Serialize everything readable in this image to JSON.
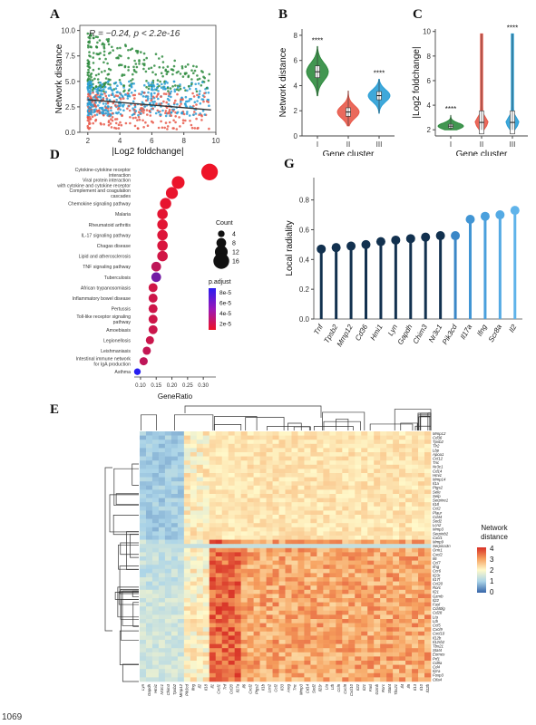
{
  "page": {
    "number": "1069"
  },
  "panels": {
    "A": "A",
    "B": "B",
    "C": "C",
    "D": "D",
    "E": "E",
    "G": "G"
  },
  "chart_data": [
    {
      "panel": "A",
      "type": "scatter",
      "annotation": "R = −0.24, p < 2.2e-16",
      "xlabel": "|Log2 foldchange|",
      "ylabel": "Network distance",
      "xticks": [
        "2",
        "4",
        "6",
        "8",
        "10"
      ],
      "yticks": [
        "0.0",
        "2.5",
        "5.0",
        "7.5",
        "10.0"
      ],
      "xlim": [
        1.5,
        10
      ],
      "ylim": [
        0,
        10.5
      ],
      "series_colors": [
        "#2e8b3e",
        "#e8594a",
        "#2a9fd6"
      ],
      "regression": {
        "x": [
          2,
          9.7
        ],
        "y": [
          3.2,
          2.2
        ]
      }
    },
    {
      "panel": "B",
      "type": "violin",
      "xlabel": "Gene cluster",
      "ylabel": "Network distance",
      "categories": [
        "I",
        "II",
        "III"
      ],
      "medians": [
        5.1,
        1.9,
        3.2
      ],
      "ranges": [
        [
          3.2,
          7.1
        ],
        [
          0.8,
          3.6
        ],
        [
          1.8,
          4.5
        ]
      ],
      "significance": [
        "****",
        "",
        "****"
      ],
      "colors": [
        "#2e8b3e",
        "#e8594a",
        "#2a9fd6"
      ],
      "yticks": [
        "0",
        "2",
        "4",
        "6",
        "8"
      ],
      "ylim": [
        0,
        8.5
      ]
    },
    {
      "panel": "C",
      "type": "violin",
      "xlabel": "Gene cluster",
      "ylabel": "|Log2 foldchange|",
      "categories": [
        "I",
        "II",
        "III"
      ],
      "medians": [
        2.3,
        2.6,
        2.6
      ],
      "ranges": [
        [
          2,
          3.2
        ],
        [
          2,
          9.8
        ],
        [
          2,
          9.8
        ]
      ],
      "significance": [
        "****",
        "",
        "****"
      ],
      "colors": [
        "#2e8b3e",
        "#e8594a",
        "#2a9fd6"
      ],
      "yticks": [
        "2",
        "4",
        "6",
        "8",
        "10"
      ],
      "ylim": [
        1.5,
        10.2
      ]
    },
    {
      "panel": "D",
      "type": "scatter",
      "xlabel": "GeneRatio",
      "xticks": [
        "0.10",
        "0.15",
        "0.20",
        "0.25",
        "0.30"
      ],
      "xlim": [
        0.08,
        0.34
      ],
      "categories": [
        "Cytokine-cytokine receptor interaction",
        "Viral protein interaction with cytokine and cytokine receptor",
        "Complement and coagulation cascades",
        "Chemokine signaling pathway",
        "Malaria",
        "Rheumatoid arthritis",
        "IL-17 signaling pathway",
        "Chagas disease",
        "Lipid and atherosclerosis",
        "TNF signaling pathway",
        "Tuberculosis",
        "African trypanosomiasis",
        "Inflammatory bowel disease",
        "Pertussis",
        "Toll-like receptor signaling pathway",
        "Amoebiasis",
        "Legionellosis",
        "Leishmaniasis",
        "Intestinal immune network for IgA production",
        "Asthma"
      ],
      "values": [
        0.32,
        0.22,
        0.2,
        0.18,
        0.17,
        0.17,
        0.17,
        0.17,
        0.17,
        0.15,
        0.15,
        0.14,
        0.14,
        0.14,
        0.14,
        0.14,
        0.13,
        0.12,
        0.11,
        0.09
      ],
      "counts": [
        17,
        12,
        11,
        10,
        9,
        9,
        9,
        9,
        9,
        8,
        8,
        7,
        7,
        7,
        7,
        7,
        6,
        6,
        6,
        4
      ],
      "p_adjust": [
        2e-06,
        3e-06,
        4e-06,
        5e-06,
        6e-06,
        7e-06,
        9e-06,
        1.1e-05,
        1.4e-05,
        2.2e-05,
        5.4e-05,
        1.5e-05,
        1.6e-05,
        1.6e-05,
        1.6e-05,
        1.7e-05,
        1.7e-05,
        2e-05,
        2.2e-05,
        8.6e-05
      ],
      "legend_count_title": "Count",
      "legend_counts": [
        "4",
        "8",
        "12",
        "16"
      ],
      "legend_p_title": "p.adjust",
      "legend_p": [
        "8e-5",
        "6e-5",
        "4e-5",
        "2e-5"
      ]
    },
    {
      "panel": "G",
      "type": "lollipop",
      "ylabel": "Local radiality",
      "yticks": [
        "0.0",
        "0.2",
        "0.4",
        "0.6",
        "0.8"
      ],
      "ylim": [
        0,
        0.95
      ],
      "categories": [
        "Tnf",
        "Tpsb2",
        "Mmp12",
        "Cd36",
        "Hmi1",
        "Lyn",
        "Gapdh",
        "Chim3",
        "Nr3c1",
        "Pik3cd",
        "Il17a",
        "Ifng",
        "Scr8a",
        "Il2"
      ],
      "values": [
        0.47,
        0.48,
        0.49,
        0.5,
        0.52,
        0.53,
        0.54,
        0.55,
        0.56,
        0.56,
        0.67,
        0.69,
        0.7,
        0.73
      ],
      "colors": [
        "#12314f",
        "#12314f",
        "#12314f",
        "#12314f",
        "#12314f",
        "#12314f",
        "#12314f",
        "#12314f",
        "#12314f",
        "#3b87c7",
        "#4195d4",
        "#4aa0dd",
        "#54aae4",
        "#5fb3ea"
      ]
    },
    {
      "panel": "E",
      "type": "heatmap",
      "legend_title": "Network distance",
      "legend_ticks": [
        "4",
        "3",
        "2",
        "1",
        "0"
      ],
      "row_labels": [
        "Mmp12",
        "Cd36",
        "Tpsb2",
        "Tlr2",
        "Lbp",
        "Apoa1",
        "Ccl12",
        "Tnc",
        "Nr3c1",
        "Cd14",
        "Hmi1",
        "Mmp14",
        "Il1a",
        "Ptgs2",
        "Sele",
        "Selp",
        "Serpine1",
        "Il18",
        "Ccl2",
        "Plaur",
        "Cd44",
        "Sod2",
        "Lcn2",
        "Mmp3",
        "Serpinb2",
        "Cxcl1",
        "Mmp9",
        "Serpina3n",
        "Orm1",
        "Cxcl2",
        "Il6",
        "Ccl7",
        "Ifng",
        "Ccr6",
        "Il23r",
        "Il17f",
        "Ccl20",
        "Rorc",
        "Il21",
        "Gzmb",
        "Il22",
        "Fasl",
        "Cd40lg",
        "Cd28",
        "Lta",
        "Ltb",
        "Ccl5",
        "Cxcl9",
        "Cxcl10",
        "Il12b",
        "Il12rb2",
        "Tbx21",
        "Stat4",
        "Eomes",
        "Prf1",
        "Cd8a",
        "Cd4",
        "Il2ra",
        "Foxp3",
        "Ctla4"
      ],
      "col_labels": [
        "Lyn",
        "Gapdh",
        "Hmi1",
        "Nr3c1",
        "Chim3",
        "Tpsb2",
        "Mmp12",
        "Pik3cd",
        "Ifng",
        "Il2",
        "Il18",
        "Il1",
        "Cxcl1",
        "Tnf",
        "Ccl20",
        "Il17a",
        "Il6",
        "Cxcl2",
        "Ptgs2",
        "Il1b",
        "Lcn2",
        "Ccl2",
        "Il33",
        "Areg",
        "Tnc",
        "Mmp3",
        "Cd14",
        "Sod2",
        "Il23r",
        "Lta",
        "Ltb",
        "Ccl5",
        "Cxcl9",
        "Cxcl10",
        "Il22",
        "Il21",
        "Fasl",
        "Gzmb",
        "Rorc",
        "Stat4",
        "Tbx21",
        "Il4",
        "Il5",
        "Il13",
        "Il10",
        "Il12b"
      ]
    }
  ]
}
